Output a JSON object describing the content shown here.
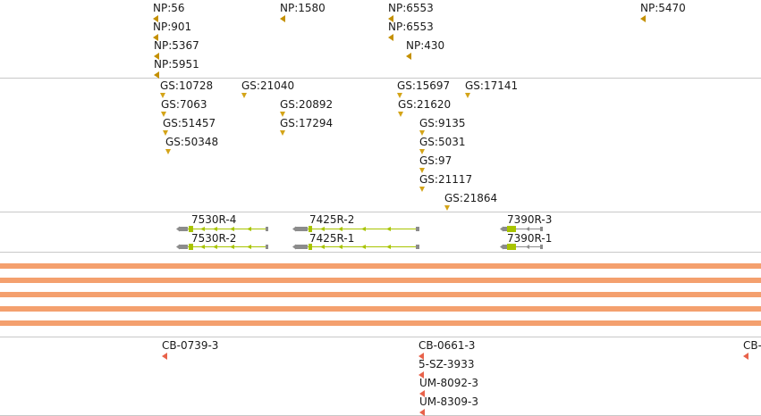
{
  "tracks": {
    "np": [
      {
        "label": "NP:56"
      },
      {
        "label": "NP:901"
      },
      {
        "label": "NP:5367"
      },
      {
        "label": "NP:5951"
      },
      {
        "label": "NP:1580"
      },
      {
        "label": "NP:6553"
      },
      {
        "label": "NP:6553"
      },
      {
        "label": "NP:430"
      },
      {
        "label": "NP:5470"
      }
    ],
    "gs": [
      {
        "label": "GS:10728"
      },
      {
        "label": "GS:7063"
      },
      {
        "label": "GS:51457"
      },
      {
        "label": "GS:50348"
      },
      {
        "label": "GS:21040"
      },
      {
        "label": "GS:20892"
      },
      {
        "label": "GS:17294"
      },
      {
        "label": "GS:15697"
      },
      {
        "label": "GS:21620"
      },
      {
        "label": "GS:9135"
      },
      {
        "label": "GS:5031"
      },
      {
        "label": "GS:97"
      },
      {
        "label": "GS:21117"
      },
      {
        "label": "GS:21864"
      },
      {
        "label": "GS:17141"
      }
    ],
    "genes": [
      {
        "label": "7530R-4"
      },
      {
        "label": "7530R-2"
      },
      {
        "label": "7425R-2"
      },
      {
        "label": "7425R-1"
      },
      {
        "label": "7390R-3"
      },
      {
        "label": "7390R-1"
      }
    ],
    "cb": [
      {
        "label": "CB-0739-3"
      },
      {
        "label": "CB-0661-3"
      },
      {
        "label": "5-SZ-3933"
      },
      {
        "label": "UM-8092-3"
      },
      {
        "label": "UM-8309-3"
      },
      {
        "label": "CB-"
      }
    ]
  },
  "colors": {
    "np_marker": "#c49000",
    "gs_marker": "#d4a418",
    "cb_marker": "#e8624a",
    "band": "#f4a06e",
    "gene_exon": "#a8c400",
    "gene_utr": "#8c8c8c"
  }
}
